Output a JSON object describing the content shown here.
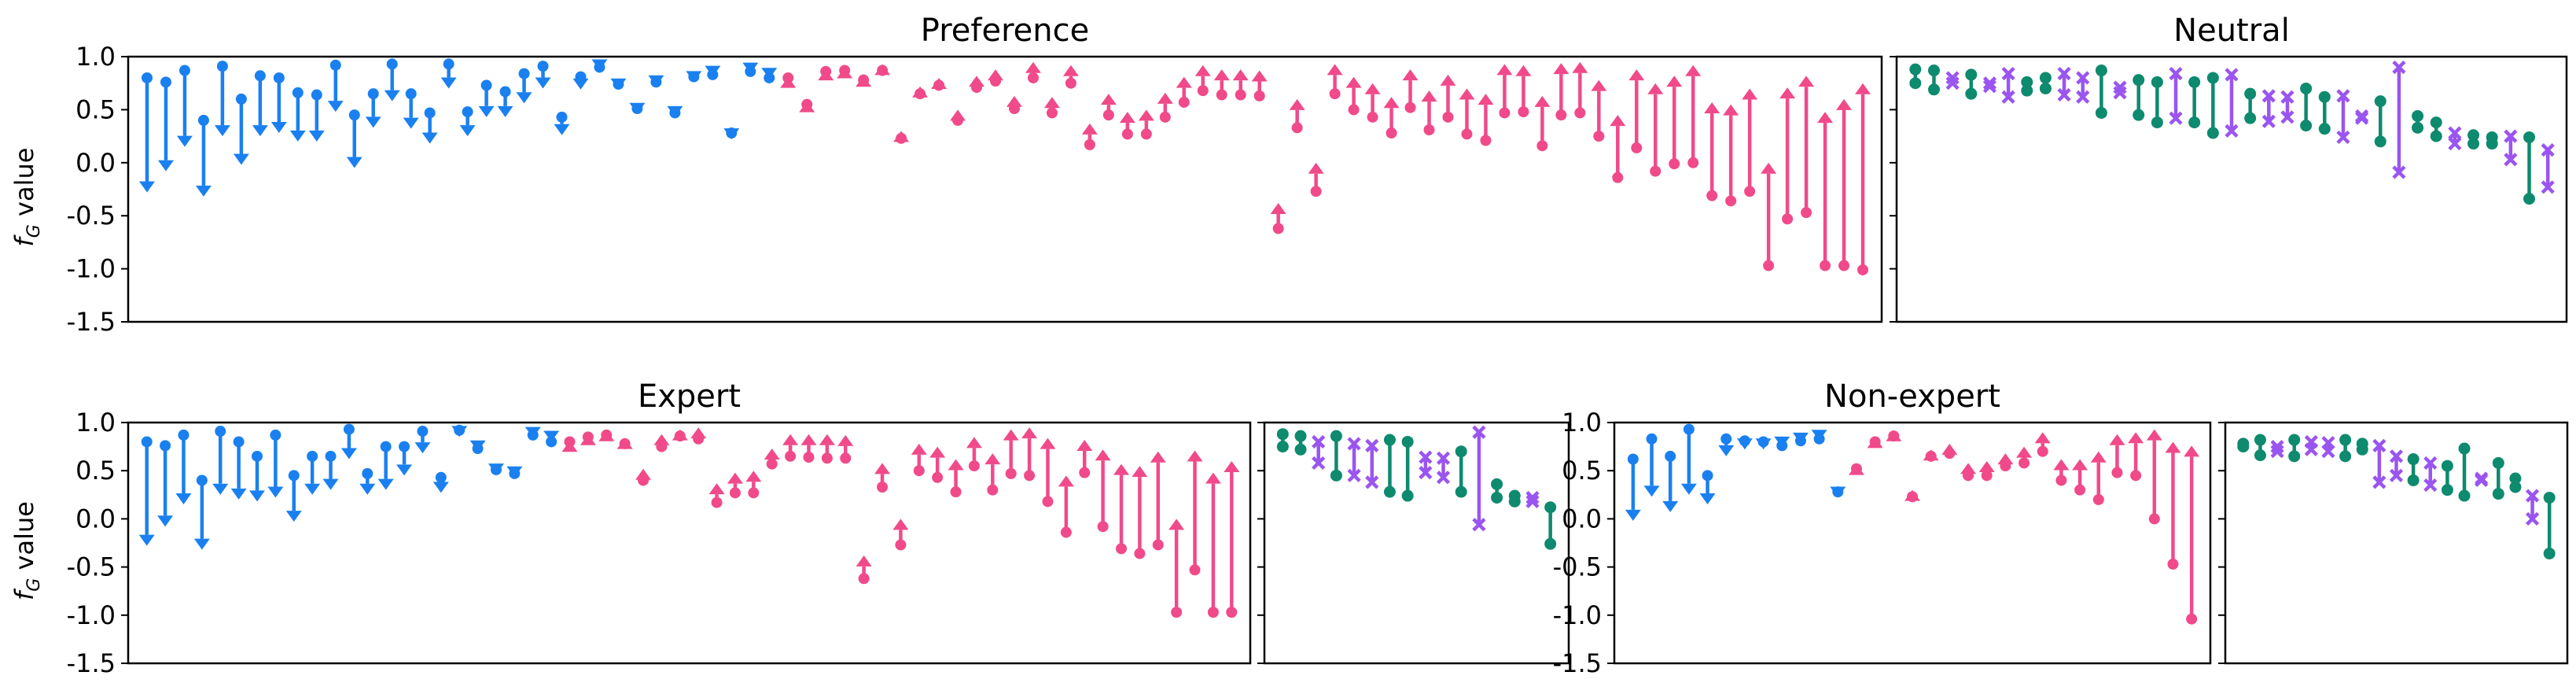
{
  "colors": {
    "decrease": "#1a80f0",
    "increase": "#f04a8a",
    "neutral_a": "#0e8a6e",
    "neutral_b": "#9a55f0",
    "axis": "#000000"
  },
  "chart_data": [
    {
      "type": "dumbbell",
      "title": "Preference",
      "ylabel": "f_G value",
      "ylim": [
        -1.5,
        1.0
      ],
      "yticks": [
        "1.0",
        "0.5",
        "0.0",
        "-0.5",
        "-1.0",
        "-1.5"
      ],
      "series": [
        {
          "name": "",
          "kind": "decrease",
          "pairs": [
            [
              0.8,
              -0.28
            ],
            [
              0.76,
              -0.08
            ],
            [
              0.87,
              0.15
            ],
            [
              0.4,
              -0.32
            ],
            [
              0.91,
              0.25
            ],
            [
              0.6,
              -0.02
            ],
            [
              0.82,
              0.25
            ],
            [
              0.8,
              0.28
            ],
            [
              0.66,
              0.2
            ],
            [
              0.64,
              0.2
            ],
            [
              0.92,
              0.48
            ],
            [
              0.45,
              -0.05
            ],
            [
              0.65,
              0.33
            ],
            [
              0.93,
              0.58
            ],
            [
              0.65,
              0.32
            ],
            [
              0.47,
              0.18
            ],
            [
              0.93,
              0.7
            ],
            [
              0.48,
              0.25
            ],
            [
              0.73,
              0.43
            ],
            [
              0.67,
              0.43
            ],
            [
              0.84,
              0.56
            ],
            [
              0.91,
              0.7
            ],
            [
              0.43,
              0.26
            ],
            [
              0.81,
              0.69
            ],
            [
              0.9,
              0.87
            ],
            [
              0.74,
              0.69
            ],
            [
              0.51,
              0.46
            ],
            [
              0.76,
              0.72
            ],
            [
              0.47,
              0.43
            ],
            [
              0.81,
              0.76
            ],
            [
              0.83,
              0.81
            ],
            [
              0.28,
              0.22
            ],
            [
              0.86,
              0.84
            ],
            [
              0.8,
              0.79
            ]
          ]
        },
        {
          "name": "",
          "kind": "increase",
          "pairs": [
            [
              0.8,
              0.81
            ],
            [
              0.55,
              0.58
            ],
            [
              0.86,
              0.88
            ],
            [
              0.87,
              0.9
            ],
            [
              0.78,
              0.82
            ],
            [
              0.87,
              0.93
            ],
            [
              0.23,
              0.3
            ],
            [
              0.65,
              0.72
            ],
            [
              0.73,
              0.8
            ],
            [
              0.4,
              0.5
            ],
            [
              0.71,
              0.82
            ],
            [
              0.77,
              0.88
            ],
            [
              0.51,
              0.63
            ],
            [
              0.8,
              0.95
            ],
            [
              0.47,
              0.62
            ],
            [
              0.75,
              0.92
            ],
            [
              0.17,
              0.37
            ],
            [
              0.45,
              0.65
            ],
            [
              0.27,
              0.48
            ],
            [
              0.27,
              0.5
            ],
            [
              0.43,
              0.66
            ],
            [
              0.57,
              0.81
            ],
            [
              0.68,
              0.92
            ],
            [
              0.64,
              0.88
            ],
            [
              0.64,
              0.88
            ],
            [
              0.63,
              0.87
            ],
            [
              -0.62,
              -0.38
            ],
            [
              0.33,
              0.6
            ],
            [
              -0.27,
              0.0
            ],
            [
              0.65,
              0.93
            ],
            [
              0.5,
              0.81
            ],
            [
              0.43,
              0.75
            ],
            [
              0.28,
              0.62
            ],
            [
              0.52,
              0.88
            ],
            [
              0.31,
              0.68
            ],
            [
              0.43,
              0.83
            ],
            [
              0.27,
              0.7
            ],
            [
              0.21,
              0.65
            ],
            [
              0.47,
              0.93
            ],
            [
              0.48,
              0.92
            ],
            [
              0.16,
              0.63
            ],
            [
              0.45,
              0.94
            ],
            [
              0.47,
              0.95
            ],
            [
              0.25,
              0.78
            ],
            [
              -0.14,
              0.45
            ],
            [
              0.14,
              0.88
            ],
            [
              -0.08,
              0.75
            ],
            [
              -0.01,
              0.82
            ],
            [
              0.0,
              0.92
            ],
            [
              -0.31,
              0.57
            ],
            [
              -0.36,
              0.55
            ],
            [
              -0.27,
              0.7
            ],
            [
              -0.97,
              0.0
            ],
            [
              -0.53,
              0.71
            ],
            [
              -0.47,
              0.82
            ],
            [
              -0.97,
              0.48
            ],
            [
              -0.97,
              0.6
            ],
            [
              -1.01,
              0.75
            ]
          ]
        }
      ]
    },
    {
      "type": "dumbbell",
      "title": "Neutral",
      "ylim": [
        -1.5,
        1.0
      ],
      "series": [
        {
          "name": "",
          "kind": "neutral",
          "pairs": [
            [
              0.88,
              0.75
            ],
            [
              0.87,
              0.69
            ],
            [
              0.8,
              0.75
            ],
            [
              0.83,
              0.65
            ],
            [
              0.75,
              0.72
            ],
            [
              0.84,
              0.62
            ],
            [
              0.76,
              0.68
            ],
            [
              0.8,
              0.7
            ],
            [
              0.84,
              0.64
            ],
            [
              0.8,
              0.62
            ],
            [
              0.87,
              0.47
            ],
            [
              0.71,
              0.66
            ],
            [
              0.78,
              0.45
            ],
            [
              0.76,
              0.38
            ],
            [
              0.84,
              0.42
            ],
            [
              0.76,
              0.38
            ],
            [
              0.8,
              0.28
            ],
            [
              0.83,
              0.3
            ],
            [
              0.65,
              0.42
            ],
            [
              0.63,
              0.39
            ],
            [
              0.62,
              0.43
            ],
            [
              0.7,
              0.35
            ],
            [
              0.62,
              0.32
            ],
            [
              0.63,
              0.24
            ],
            [
              0.44,
              0.42
            ],
            [
              0.58,
              0.2
            ],
            [
              0.9,
              -0.09
            ],
            [
              0.44,
              0.33
            ],
            [
              0.38,
              0.25
            ],
            [
              0.28,
              0.18
            ],
            [
              0.26,
              0.18
            ],
            [
              0.24,
              0.18
            ],
            [
              0.25,
              0.03
            ],
            [
              0.24,
              -0.34
            ],
            [
              0.12,
              -0.23
            ]
          ]
        }
      ]
    },
    {
      "type": "dumbbell",
      "title": "Expert",
      "ylabel": "f_G value",
      "ylim": [
        -1.5,
        1.0
      ],
      "series": [
        {
          "name": "",
          "kind": "decrease",
          "pairs": [
            [
              0.8,
              -0.28
            ],
            [
              0.76,
              -0.08
            ],
            [
              0.87,
              0.15
            ],
            [
              0.4,
              -0.32
            ],
            [
              0.91,
              0.25
            ],
            [
              0.8,
              0.2
            ],
            [
              0.65,
              0.18
            ],
            [
              0.87,
              0.22
            ],
            [
              0.45,
              -0.03
            ],
            [
              0.65,
              0.25
            ],
            [
              0.65,
              0.3
            ],
            [
              0.93,
              0.62
            ],
            [
              0.47,
              0.25
            ],
            [
              0.75,
              0.3
            ],
            [
              0.75,
              0.45
            ],
            [
              0.91,
              0.68
            ],
            [
              0.43,
              0.27
            ],
            [
              0.92,
              0.85
            ],
            [
              0.73,
              0.7
            ],
            [
              0.51,
              0.46
            ],
            [
              0.47,
              0.43
            ],
            [
              0.87,
              0.84
            ],
            [
              0.8,
              0.8
            ]
          ]
        },
        {
          "name": "",
          "kind": "increase",
          "pairs": [
            [
              0.8,
              0.81
            ],
            [
              0.85,
              0.88
            ],
            [
              0.87,
              0.92
            ],
            [
              0.78,
              0.84
            ],
            [
              0.4,
              0.52
            ],
            [
              0.75,
              0.88
            ],
            [
              0.86,
              0.93
            ],
            [
              0.83,
              0.95
            ],
            [
              0.17,
              0.37
            ],
            [
              0.27,
              0.48
            ],
            [
              0.27,
              0.5
            ],
            [
              0.57,
              0.73
            ],
            [
              0.65,
              0.88
            ],
            [
              0.64,
              0.88
            ],
            [
              0.63,
              0.88
            ],
            [
              0.63,
              0.87
            ],
            [
              -0.62,
              -0.38
            ],
            [
              0.33,
              0.58
            ],
            [
              -0.27,
              0.0
            ],
            [
              0.5,
              0.78
            ],
            [
              0.43,
              0.75
            ],
            [
              0.28,
              0.62
            ],
            [
              0.55,
              0.85
            ],
            [
              0.3,
              0.68
            ],
            [
              0.47,
              0.93
            ],
            [
              0.45,
              0.95
            ],
            [
              0.18,
              0.84
            ],
            [
              -0.14,
              0.45
            ],
            [
              0.48,
              0.82
            ],
            [
              -0.08,
              0.72
            ],
            [
              -0.31,
              0.57
            ],
            [
              -0.36,
              0.55
            ],
            [
              -0.27,
              0.7
            ],
            [
              -0.97,
              0.0
            ],
            [
              -0.53,
              0.71
            ],
            [
              -0.97,
              0.48
            ],
            [
              -0.97,
              0.6
            ]
          ]
        }
      ]
    },
    {
      "type": "dumbbell",
      "title": "",
      "ylim": [
        -1.5,
        1.0
      ],
      "series": [
        {
          "name": "",
          "kind": "neutral",
          "pairs": [
            [
              0.88,
              0.75
            ],
            [
              0.86,
              0.72
            ],
            [
              0.8,
              0.58
            ],
            [
              0.86,
              0.45
            ],
            [
              0.78,
              0.45
            ],
            [
              0.76,
              0.38
            ],
            [
              0.82,
              0.28
            ],
            [
              0.8,
              0.24
            ],
            [
              0.64,
              0.48
            ],
            [
              0.63,
              0.43
            ],
            [
              0.7,
              0.28
            ],
            [
              0.9,
              -0.06
            ],
            [
              0.36,
              0.22
            ],
            [
              0.24,
              0.18
            ],
            [
              0.22,
              0.18
            ],
            [
              0.12,
              -0.26
            ]
          ]
        }
      ]
    },
    {
      "type": "dumbbell",
      "title": "Non-expert",
      "ylim": [
        -1.5,
        1.0
      ],
      "series": [
        {
          "name": "",
          "kind": "decrease",
          "pairs": [
            [
              0.62,
              -0.02
            ],
            [
              0.83,
              0.23
            ],
            [
              0.65,
              0.07
            ],
            [
              0.93,
              0.25
            ],
            [
              0.45,
              0.15
            ],
            [
              0.83,
              0.65
            ],
            [
              0.81,
              0.72
            ],
            [
              0.8,
              0.72
            ],
            [
              0.76,
              0.74
            ],
            [
              0.81,
              0.78
            ],
            [
              0.83,
              0.81
            ],
            [
              0.28,
              0.22
            ]
          ]
        },
        {
          "name": "",
          "kind": "increase",
          "pairs": [
            [
              0.52,
              0.57
            ],
            [
              0.8,
              0.85
            ],
            [
              0.86,
              0.92
            ],
            [
              0.23,
              0.3
            ],
            [
              0.65,
              0.72
            ],
            [
              0.68,
              0.78
            ],
            [
              0.45,
              0.58
            ],
            [
              0.45,
              0.6
            ],
            [
              0.55,
              0.68
            ],
            [
              0.58,
              0.75
            ],
            [
              0.7,
              0.9
            ],
            [
              0.4,
              0.62
            ],
            [
              0.3,
              0.62
            ],
            [
              0.2,
              0.7
            ],
            [
              0.48,
              0.88
            ],
            [
              0.45,
              0.9
            ],
            [
              0.0,
              0.93
            ],
            [
              -0.47,
              0.8
            ],
            [
              -1.04,
              0.76
            ]
          ]
        }
      ]
    },
    {
      "type": "dumbbell",
      "title": "",
      "ylim": [
        -1.5,
        1.0
      ],
      "series": [
        {
          "name": "",
          "kind": "neutral",
          "pairs": [
            [
              0.78,
              0.75
            ],
            [
              0.82,
              0.66
            ],
            [
              0.75,
              0.7
            ],
            [
              0.82,
              0.65
            ],
            [
              0.8,
              0.72
            ],
            [
              0.79,
              0.7
            ],
            [
              0.82,
              0.65
            ],
            [
              0.78,
              0.72
            ],
            [
              0.76,
              0.38
            ],
            [
              0.65,
              0.45
            ],
            [
              0.62,
              0.4
            ],
            [
              0.58,
              0.35
            ],
            [
              0.55,
              0.3
            ],
            [
              0.73,
              0.24
            ],
            [
              0.42,
              0.4
            ],
            [
              0.58,
              0.26
            ],
            [
              0.42,
              0.33
            ],
            [
              0.24,
              0.0
            ],
            [
              0.22,
              -0.36
            ]
          ]
        }
      ]
    }
  ]
}
